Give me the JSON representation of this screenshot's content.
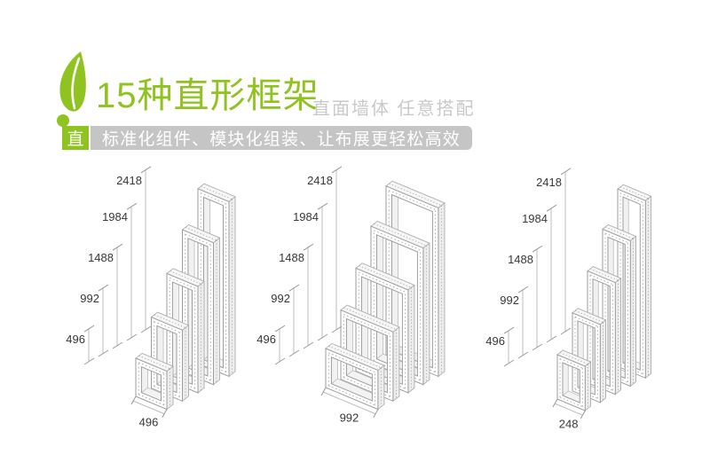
{
  "header": {
    "title": "15种直形框架",
    "subtitle": "直面墙体 任意搭配",
    "badge": "直",
    "banner_text": "标准化组件、模块化组装、让布展更轻松高效",
    "leaf_icon": "leaf-exclamation-icon"
  },
  "colors": {
    "accent_green": "#8fc31f",
    "banner_gray": "#c5c5c5",
    "subtitle_gray": "#c9c9c9",
    "dim_line": "#bcbcbc",
    "frame_line": "#9e9e9e",
    "label_text": "#383838"
  },
  "diagrams": [
    {
      "name": "straight-frame-set-width-496",
      "frame_count": 5,
      "height_values": [
        496,
        992,
        1488,
        1984,
        2418
      ],
      "height_labels": [
        "496",
        "992",
        "1488",
        "1984",
        "2418"
      ],
      "width_value": 496,
      "width_label": "496"
    },
    {
      "name": "straight-frame-set-width-992",
      "frame_count": 5,
      "height_values": [
        496,
        992,
        1488,
        1984,
        2418
      ],
      "height_labels": [
        "496",
        "992",
        "1488",
        "1984",
        "2418"
      ],
      "width_value": 992,
      "width_label": "992"
    },
    {
      "name": "straight-frame-set-width-248",
      "frame_count": 5,
      "height_values": [
        496,
        992,
        1488,
        1984,
        2418
      ],
      "height_labels": [
        "496",
        "992",
        "1488",
        "1984",
        "2418"
      ],
      "width_value": 248,
      "width_label": "248"
    }
  ]
}
